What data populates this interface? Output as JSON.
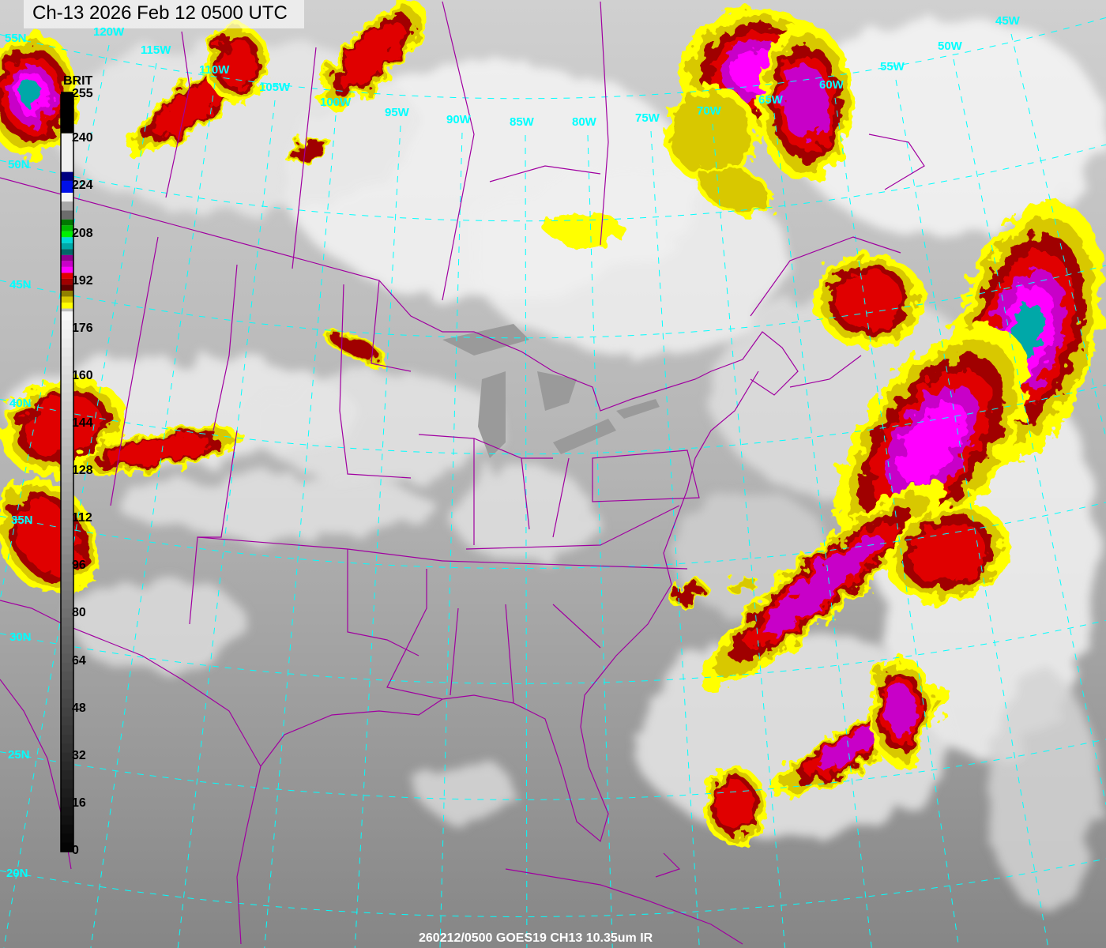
{
  "title": "Ch-13 2026 Feb 12 0500 UTC",
  "footer": "260212/0500 GOES19 CH13 10.35um  IR",
  "colorbar": {
    "label": "BRIT",
    "ticks": [
      "255",
      "240",
      "224",
      "208",
      "192",
      "176",
      "160",
      "144",
      "128",
      "112",
      "96",
      "80",
      "64",
      "48",
      "32",
      "16",
      "0"
    ],
    "segments": [
      {
        "from": 242,
        "to": 255,
        "color": "#000000"
      },
      {
        "from": 229,
        "to": 241,
        "color": "#f0f0f0"
      },
      {
        "from": 226,
        "to": 228,
        "color": "#000080"
      },
      {
        "from": 222,
        "to": 225,
        "color": "#0010e8"
      },
      {
        "from": 219,
        "to": 221,
        "color": "#f4f4f4"
      },
      {
        "from": 216,
        "to": 218,
        "color": "#a8a8a8"
      },
      {
        "from": 213,
        "to": 215,
        "color": "#6c6c6c"
      },
      {
        "from": 211,
        "to": 212,
        "color": "#007800"
      },
      {
        "from": 209,
        "to": 210,
        "color": "#00b800"
      },
      {
        "from": 207,
        "to": 208,
        "color": "#00f000"
      },
      {
        "from": 205,
        "to": 206,
        "color": "#00d8d8"
      },
      {
        "from": 203,
        "to": 204,
        "color": "#00a8a8"
      },
      {
        "from": 201,
        "to": 202,
        "color": "#006868"
      },
      {
        "from": 199,
        "to": 200,
        "color": "#900090"
      },
      {
        "from": 197,
        "to": 198,
        "color": "#c800c8"
      },
      {
        "from": 195,
        "to": 196,
        "color": "#ff00ff"
      },
      {
        "from": 193,
        "to": 194,
        "color": "#e00000"
      },
      {
        "from": 191,
        "to": 192,
        "color": "#a00000"
      },
      {
        "from": 189,
        "to": 190,
        "color": "#600000"
      },
      {
        "from": 187,
        "to": 188,
        "color": "#908000"
      },
      {
        "from": 185,
        "to": 186,
        "color": "#d8c800"
      },
      {
        "from": 183,
        "to": 184,
        "color": "#ffff00"
      }
    ]
  },
  "graticule": {
    "color": "#00ffff",
    "longitudes": [
      "120W",
      "115W",
      "110W",
      "105W",
      "100W",
      "95W",
      "90W",
      "85W",
      "80W",
      "75W",
      "70W",
      "65W",
      "60W",
      "55W",
      "50W",
      "45W"
    ],
    "latitudes": [
      "55N",
      "50N",
      "45N",
      "40N",
      "35N",
      "30N",
      "25N",
      "20N"
    ]
  },
  "colors": {
    "boundaries": "#a000a0",
    "label": "#00ffff"
  }
}
